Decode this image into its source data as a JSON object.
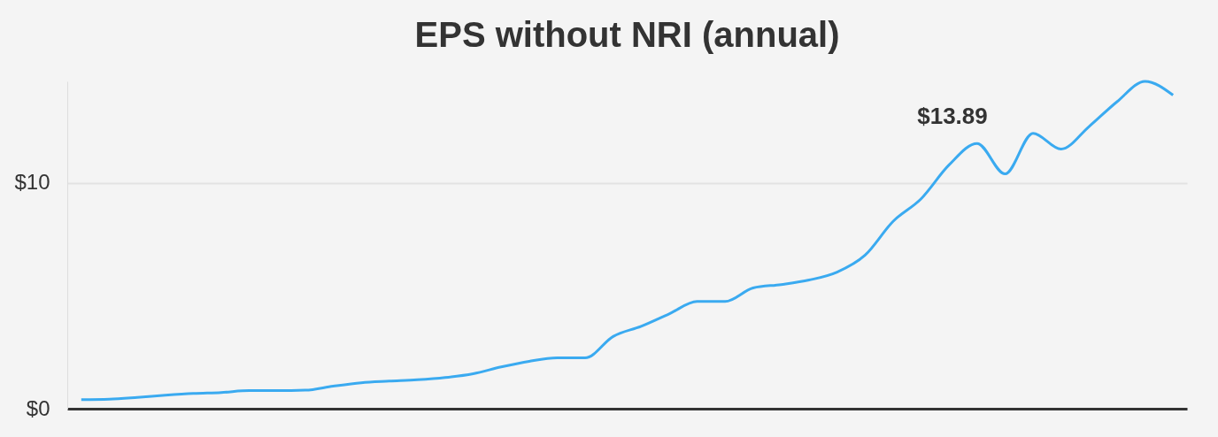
{
  "chart_data": {
    "type": "line",
    "title": "EPS without NRI (annual)",
    "categories": [
      null,
      null,
      null,
      null,
      null,
      null,
      null,
      null,
      null,
      null,
      null,
      null,
      null,
      null,
      null,
      null,
      null,
      null,
      null,
      null,
      null,
      null,
      null,
      null,
      null,
      null,
      null,
      null,
      null,
      null,
      null,
      null,
      null,
      null,
      null,
      null,
      null,
      null,
      null,
      null
    ],
    "series": [
      {
        "color": "#3aaaf0",
        "values": [
          0.4,
          0.42,
          0.5,
          0.6,
          0.68,
          0.72,
          0.8,
          0.8,
          0.82,
          1.0,
          1.15,
          1.22,
          1.28,
          1.38,
          1.55,
          1.85,
          2.1,
          2.25,
          2.25,
          3.2,
          3.65,
          4.2,
          4.75,
          4.75,
          5.35,
          5.5,
          5.7,
          6.05,
          6.8,
          8.3,
          9.3,
          10.8,
          11.75,
          10.4,
          12.2,
          11.5,
          12.5,
          13.6,
          14.5,
          13.89
        ]
      }
    ],
    "ylim": [
      0,
      14.5
    ],
    "yticks": [
      {
        "value": 0,
        "label": "$0"
      },
      {
        "value": 10,
        "label": "$10"
      }
    ],
    "grid": "y",
    "marker": "none",
    "line_style": "solid",
    "annotations": [
      "$13.89"
    ]
  }
}
